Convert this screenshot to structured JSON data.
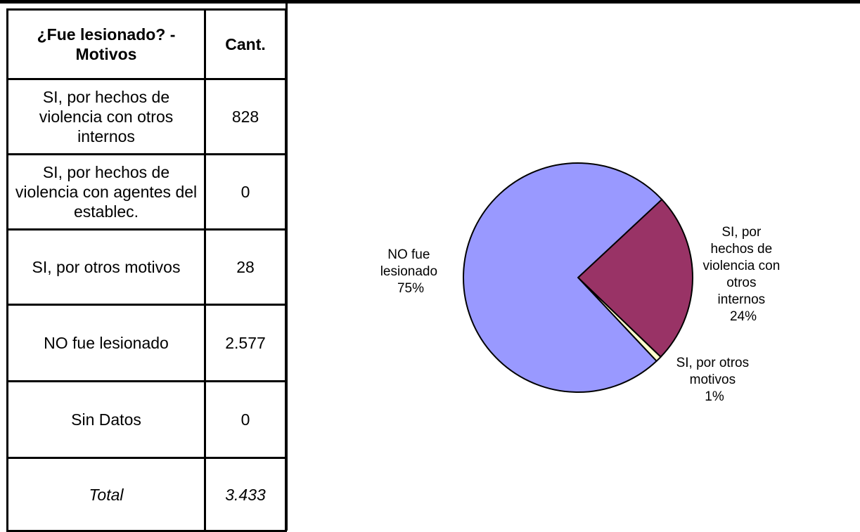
{
  "table": {
    "header": [
      "¿Fue lesionado? - Motivos",
      "Cant."
    ],
    "rows": [
      {
        "label": "SI, por hechos de violencia con otros internos",
        "value": "828"
      },
      {
        "label": "SI, por hechos de violencia con agentes del establec.",
        "value": "0"
      },
      {
        "label": "SI, por otros motivos",
        "value": "28"
      },
      {
        "label": "NO fue lesionado",
        "value": "2.577"
      },
      {
        "label": "Sin Datos",
        "value": "0"
      },
      {
        "label": "Total",
        "value": "3.433"
      }
    ]
  },
  "chart_data": {
    "type": "pie",
    "title": "",
    "slices": [
      {
        "label": "SI, por hechos de violencia con otros internos",
        "value": 828,
        "percent_label": "24%",
        "color": "#993366"
      },
      {
        "label": "SI, por otros motivos",
        "value": 28,
        "percent_label": "1%",
        "color": "#FFFFCC"
      },
      {
        "label": "NO fue lesionado",
        "value": 2577,
        "percent_label": "75%",
        "color": "#9999FF"
      }
    ],
    "start_angle_deg": 47,
    "direction": "clockwise",
    "legend": "none"
  },
  "labels": {
    "violencia_lines": [
      "SI, por",
      "hechos de",
      "violencia con",
      "otros",
      "internos",
      "24%"
    ],
    "otros_lines": [
      "SI, por otros",
      "motivos",
      "1%"
    ],
    "no_lines": [
      "NO fue",
      "lesionado",
      "75%"
    ]
  }
}
